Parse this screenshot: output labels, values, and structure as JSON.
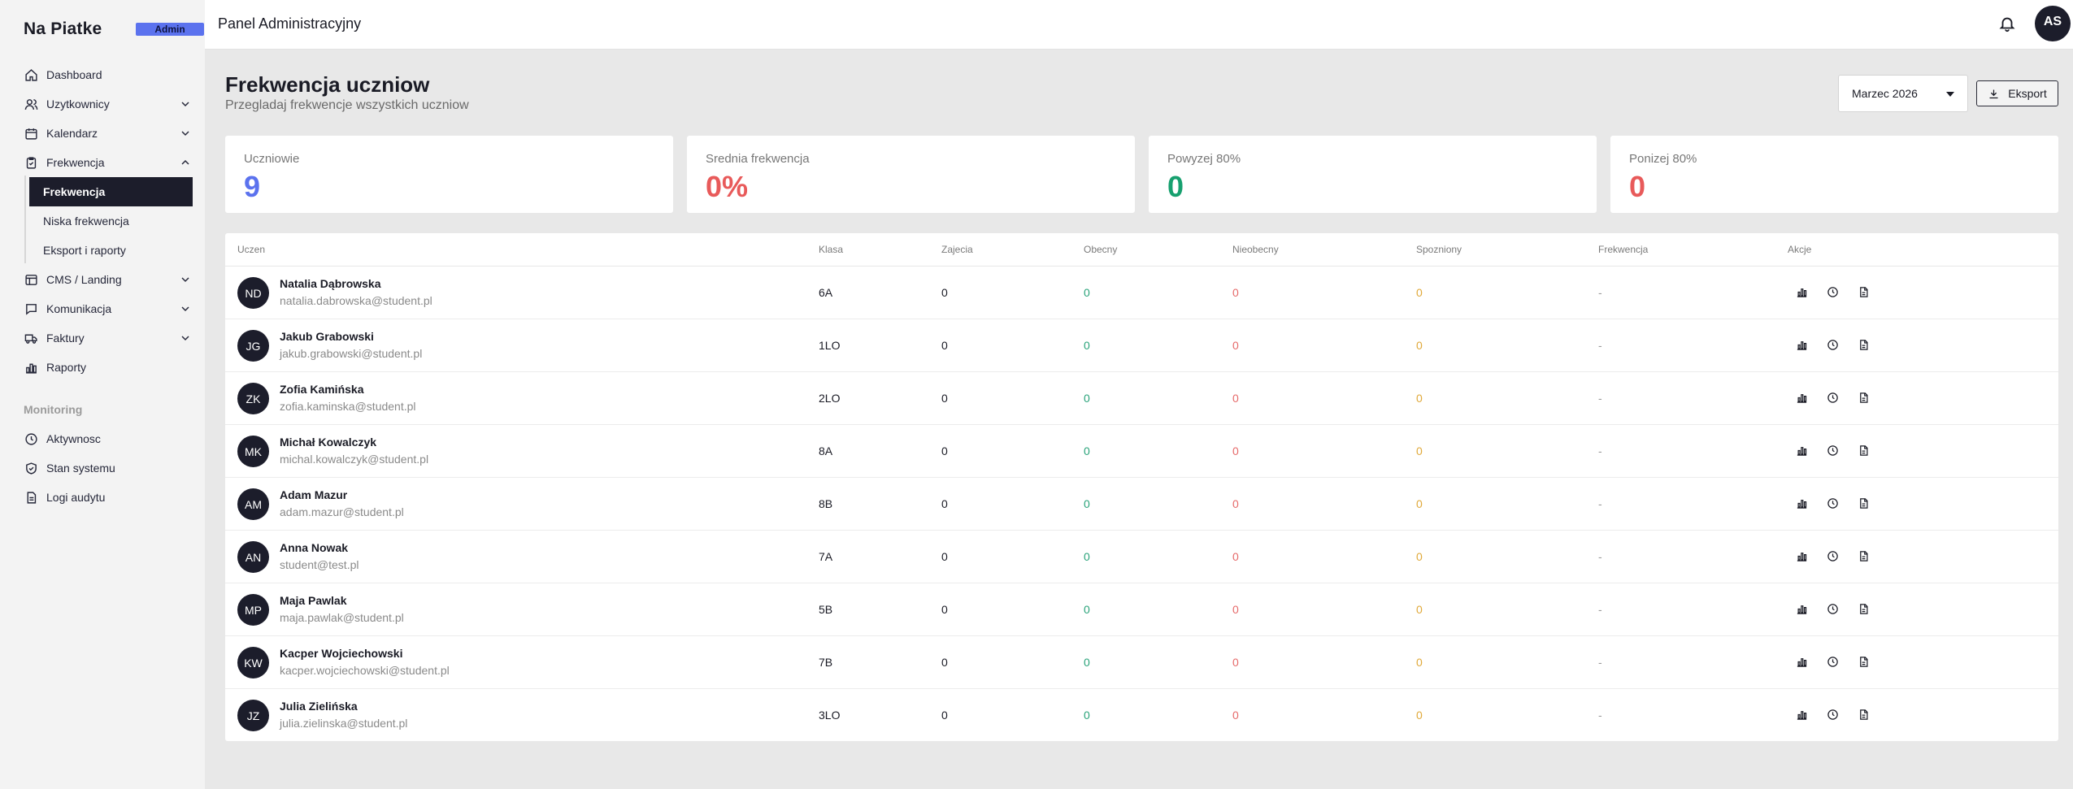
{
  "sidebar": {
    "brand": "Na Piatke",
    "badge": "Admin",
    "nav": {
      "dashboard": "Dashboard",
      "users": "Uzytkownicy",
      "calendar": "Kalendarz",
      "attendance": "Frekwencja",
      "cms": "CMS / Landing",
      "communication": "Komunikacja",
      "invoices": "Faktury",
      "reports": "Raporty"
    },
    "sub": {
      "attendance": "Frekwencja",
      "low": "Niska frekwencja",
      "export": "Eksport i raporty"
    },
    "monitoring_label": "Monitoring",
    "monitoring": {
      "activity": "Aktywnosc",
      "system": "Stan systemu",
      "audit": "Logi audytu"
    }
  },
  "header": {
    "title": "Panel Administracyjny",
    "avatar": "AS"
  },
  "page": {
    "title": "Frekwencja uczniow",
    "subtitle": "Przegladaj frekwencje wszystkich uczniow",
    "month": "Marzec 2026",
    "export_label": "Eksport"
  },
  "stats": [
    {
      "label": "Uczniowie",
      "value": "9",
      "color": "#5b72ee"
    },
    {
      "label": "Srednia frekwencja",
      "value": "0%",
      "color": "#e85a5a"
    },
    {
      "label": "Powyzej 80%",
      "value": "0",
      "color": "#17a06f"
    },
    {
      "label": "Ponizej 80%",
      "value": "0",
      "color": "#e85a5a"
    }
  ],
  "table": {
    "headers": {
      "student": "Uczen",
      "class": "Klasa",
      "lessons": "Zajecia",
      "present": "Obecny",
      "absent": "Nieobecny",
      "late": "Spozniony",
      "attendance": "Frekwencja",
      "actions": "Akcje"
    },
    "rows": [
      {
        "initials": "ND",
        "name": "Natalia Dąbrowska",
        "email": "natalia.dabrowska@student.pl",
        "class": "6A",
        "lessons": "0",
        "present": "0",
        "absent": "0",
        "late": "0",
        "attendance": "-"
      },
      {
        "initials": "JG",
        "name": "Jakub Grabowski",
        "email": "jakub.grabowski@student.pl",
        "class": "1LO",
        "lessons": "0",
        "present": "0",
        "absent": "0",
        "late": "0",
        "attendance": "-"
      },
      {
        "initials": "ZK",
        "name": "Zofia Kamińska",
        "email": "zofia.kaminska@student.pl",
        "class": "2LO",
        "lessons": "0",
        "present": "0",
        "absent": "0",
        "late": "0",
        "attendance": "-"
      },
      {
        "initials": "MK",
        "name": "Michał Kowalczyk",
        "email": "michal.kowalczyk@student.pl",
        "class": "8A",
        "lessons": "0",
        "present": "0",
        "absent": "0",
        "late": "0",
        "attendance": "-"
      },
      {
        "initials": "AM",
        "name": "Adam Mazur",
        "email": "adam.mazur@student.pl",
        "class": "8B",
        "lessons": "0",
        "present": "0",
        "absent": "0",
        "late": "0",
        "attendance": "-"
      },
      {
        "initials": "AN",
        "name": "Anna Nowak",
        "email": "student@test.pl",
        "class": "7A",
        "lessons": "0",
        "present": "0",
        "absent": "0",
        "late": "0",
        "attendance": "-"
      },
      {
        "initials": "MP",
        "name": "Maja Pawlak",
        "email": "maja.pawlak@student.pl",
        "class": "5B",
        "lessons": "0",
        "present": "0",
        "absent": "0",
        "late": "0",
        "attendance": "-"
      },
      {
        "initials": "KW",
        "name": "Kacper Wojciechowski",
        "email": "kacper.wojciechowski@student.pl",
        "class": "7B",
        "lessons": "0",
        "present": "0",
        "absent": "0",
        "late": "0",
        "attendance": "-"
      },
      {
        "initials": "JZ",
        "name": "Julia Zielińska",
        "email": "julia.zielinska@student.pl",
        "class": "3LO",
        "lessons": "0",
        "present": "0",
        "absent": "0",
        "late": "0",
        "attendance": "-"
      }
    ]
  }
}
